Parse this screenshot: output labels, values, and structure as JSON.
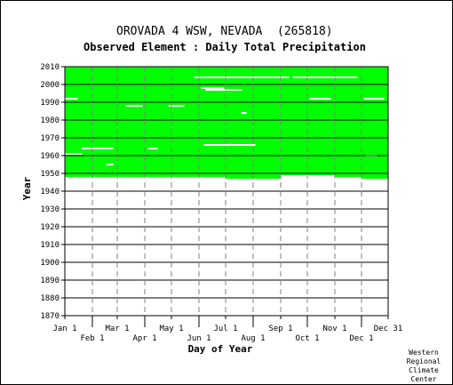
{
  "chart_data": {
    "type": "heatmap",
    "title": "OROVADA 4 WSW, NEVADA",
    "station_id": "(265818)",
    "subtitle": "Observed Element : Daily Total Precipitation",
    "xlabel": "Day of Year",
    "ylabel": "Year",
    "x_ticks_upper": [
      "Jan 1",
      "Mar 1",
      "May 1",
      "Jul 1",
      "Sep 1",
      "Nov 1",
      "Dec 31"
    ],
    "x_ticks_lower": [
      "Feb 1",
      "Apr 1",
      "Jun 1",
      "Aug 1",
      "Oct 1",
      "Dec 1"
    ],
    "x_tick_days_upper": [
      1,
      60,
      121,
      182,
      244,
      305,
      365
    ],
    "x_tick_days_lower": [
      32,
      91,
      152,
      213,
      274,
      335
    ],
    "y_ticks": [
      1870,
      1880,
      1890,
      1900,
      1910,
      1920,
      1930,
      1940,
      1950,
      1960,
      1970,
      1980,
      1990,
      2000,
      2010
    ],
    "xlim": [
      1,
      365
    ],
    "ylim": [
      1870,
      2010
    ],
    "data_color": "#00ff00",
    "record_start_by_period": [
      {
        "from_day": 1,
        "to_day": 181,
        "start_year": 1948
      },
      {
        "from_day": 182,
        "to_day": 243,
        "start_year": 1947
      },
      {
        "from_day": 244,
        "to_day": 304,
        "start_year": 1949
      },
      {
        "from_day": 305,
        "to_day": 334,
        "start_year": 1948
      },
      {
        "from_day": 335,
        "to_day": 365,
        "start_year": 1947
      }
    ],
    "record_end_year": 2010,
    "missing_gaps": [
      {
        "year": 2004,
        "from_day": 147,
        "to_day": 253
      },
      {
        "year": 2004,
        "from_day": 258,
        "to_day": 330
      },
      {
        "year": 1998,
        "from_day": 155,
        "to_day": 180
      },
      {
        "year": 1997,
        "from_day": 160,
        "to_day": 200
      },
      {
        "year": 1992,
        "from_day": 1,
        "to_day": 15
      },
      {
        "year": 1992,
        "from_day": 338,
        "to_day": 360
      },
      {
        "year": 1992,
        "from_day": 277,
        "to_day": 300
      },
      {
        "year": 1988,
        "from_day": 70,
        "to_day": 88
      },
      {
        "year": 1988,
        "from_day": 118,
        "to_day": 135
      },
      {
        "year": 1984,
        "from_day": 200,
        "to_day": 205
      },
      {
        "year": 1966,
        "from_day": 158,
        "to_day": 215
      },
      {
        "year": 1964,
        "from_day": 20,
        "to_day": 55
      },
      {
        "year": 1964,
        "from_day": 95,
        "to_day": 105
      },
      {
        "year": 1961,
        "from_day": 1,
        "to_day": 20
      },
      {
        "year": 1960,
        "from_day": 340,
        "to_day": 352
      },
      {
        "year": 1955,
        "from_day": 48,
        "to_day": 55
      }
    ]
  },
  "credit": [
    "Western",
    "Regional",
    "Climate",
    "Center"
  ]
}
